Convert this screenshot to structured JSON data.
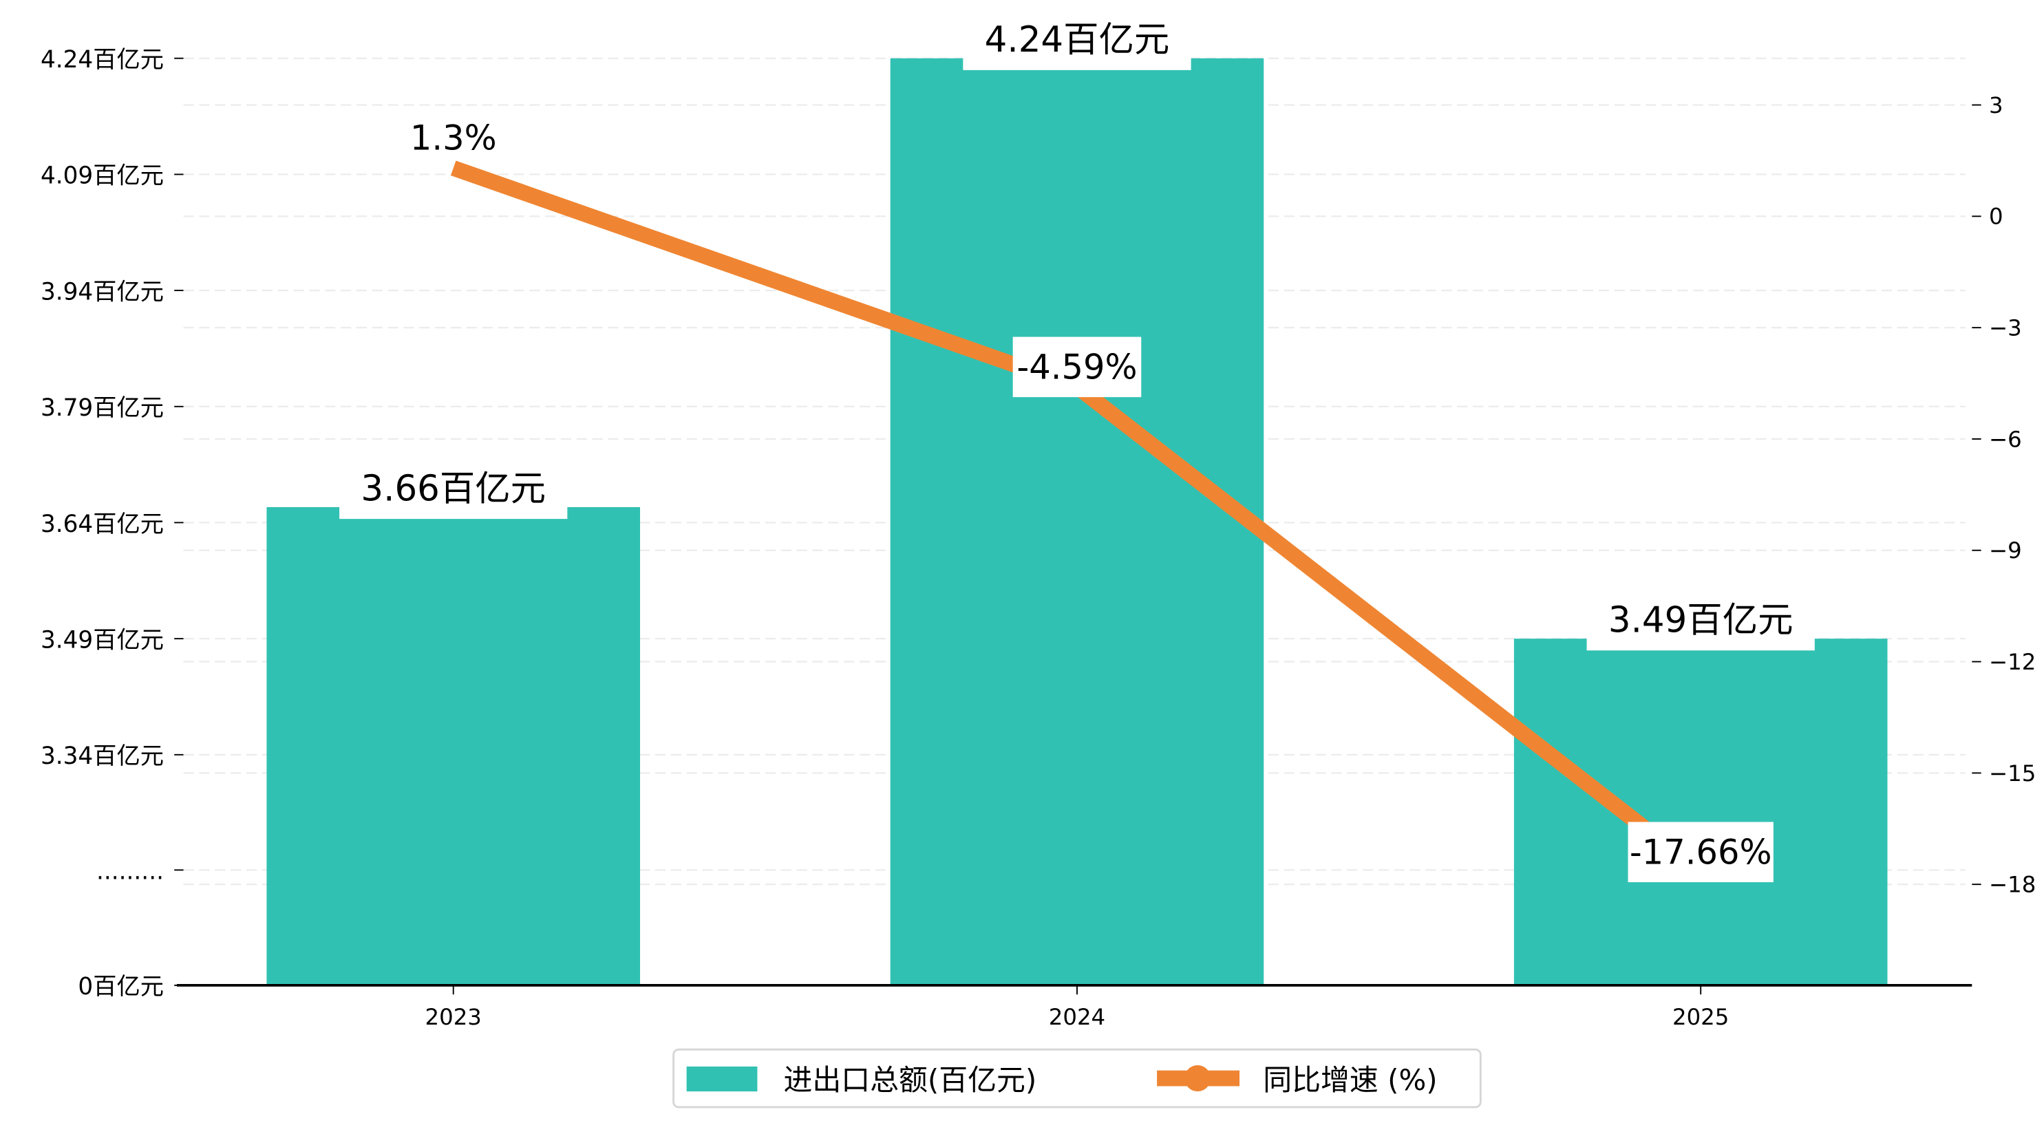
{
  "chart_data": {
    "type": "bar",
    "categories": [
      "2023",
      "2024",
      "2025"
    ],
    "series": [
      {
        "name": "进出口总额(百亿元)",
        "type": "bar",
        "axis": "left",
        "values": [
          3.66,
          4.24,
          3.49
        ],
        "labels": [
          "3.66百亿元",
          "4.24百亿元",
          "3.49百亿元"
        ],
        "color": "#31C1B3"
      },
      {
        "name": "同比增速 (%)",
        "type": "line",
        "axis": "right",
        "values": [
          1.3,
          -4.59,
          -17.66
        ],
        "labels": [
          "1.3%",
          "-4.59%",
          "-17.66%"
        ],
        "color": "#EF8532"
      }
    ],
    "left_axis": {
      "broken": true,
      "ticks": [
        {
          "value": 0,
          "label": "0百亿元"
        },
        {
          "value": null,
          "label": "........."
        },
        {
          "value": 3.34,
          "label": "3.34百亿元"
        },
        {
          "value": 3.49,
          "label": "3.49百亿元"
        },
        {
          "value": 3.64,
          "label": "3.64百亿元"
        },
        {
          "value": 3.79,
          "label": "3.79百亿元"
        },
        {
          "value": 3.94,
          "label": "3.94百亿元"
        },
        {
          "value": 4.09,
          "label": "4.09百亿元"
        },
        {
          "value": 4.24,
          "label": "4.24百亿元"
        }
      ]
    },
    "right_axis": {
      "ticks": [
        3,
        0,
        -3,
        -6,
        -9,
        -12,
        -15,
        -18
      ],
      "labels": [
        "3",
        "0",
        "−3",
        "−6",
        "−9",
        "−12",
        "−15",
        "−18"
      ]
    },
    "grid": true,
    "legend": {
      "position": "bottom-center",
      "entries": [
        "进出口总额(百亿元)",
        "同比增速 (%)"
      ]
    }
  }
}
